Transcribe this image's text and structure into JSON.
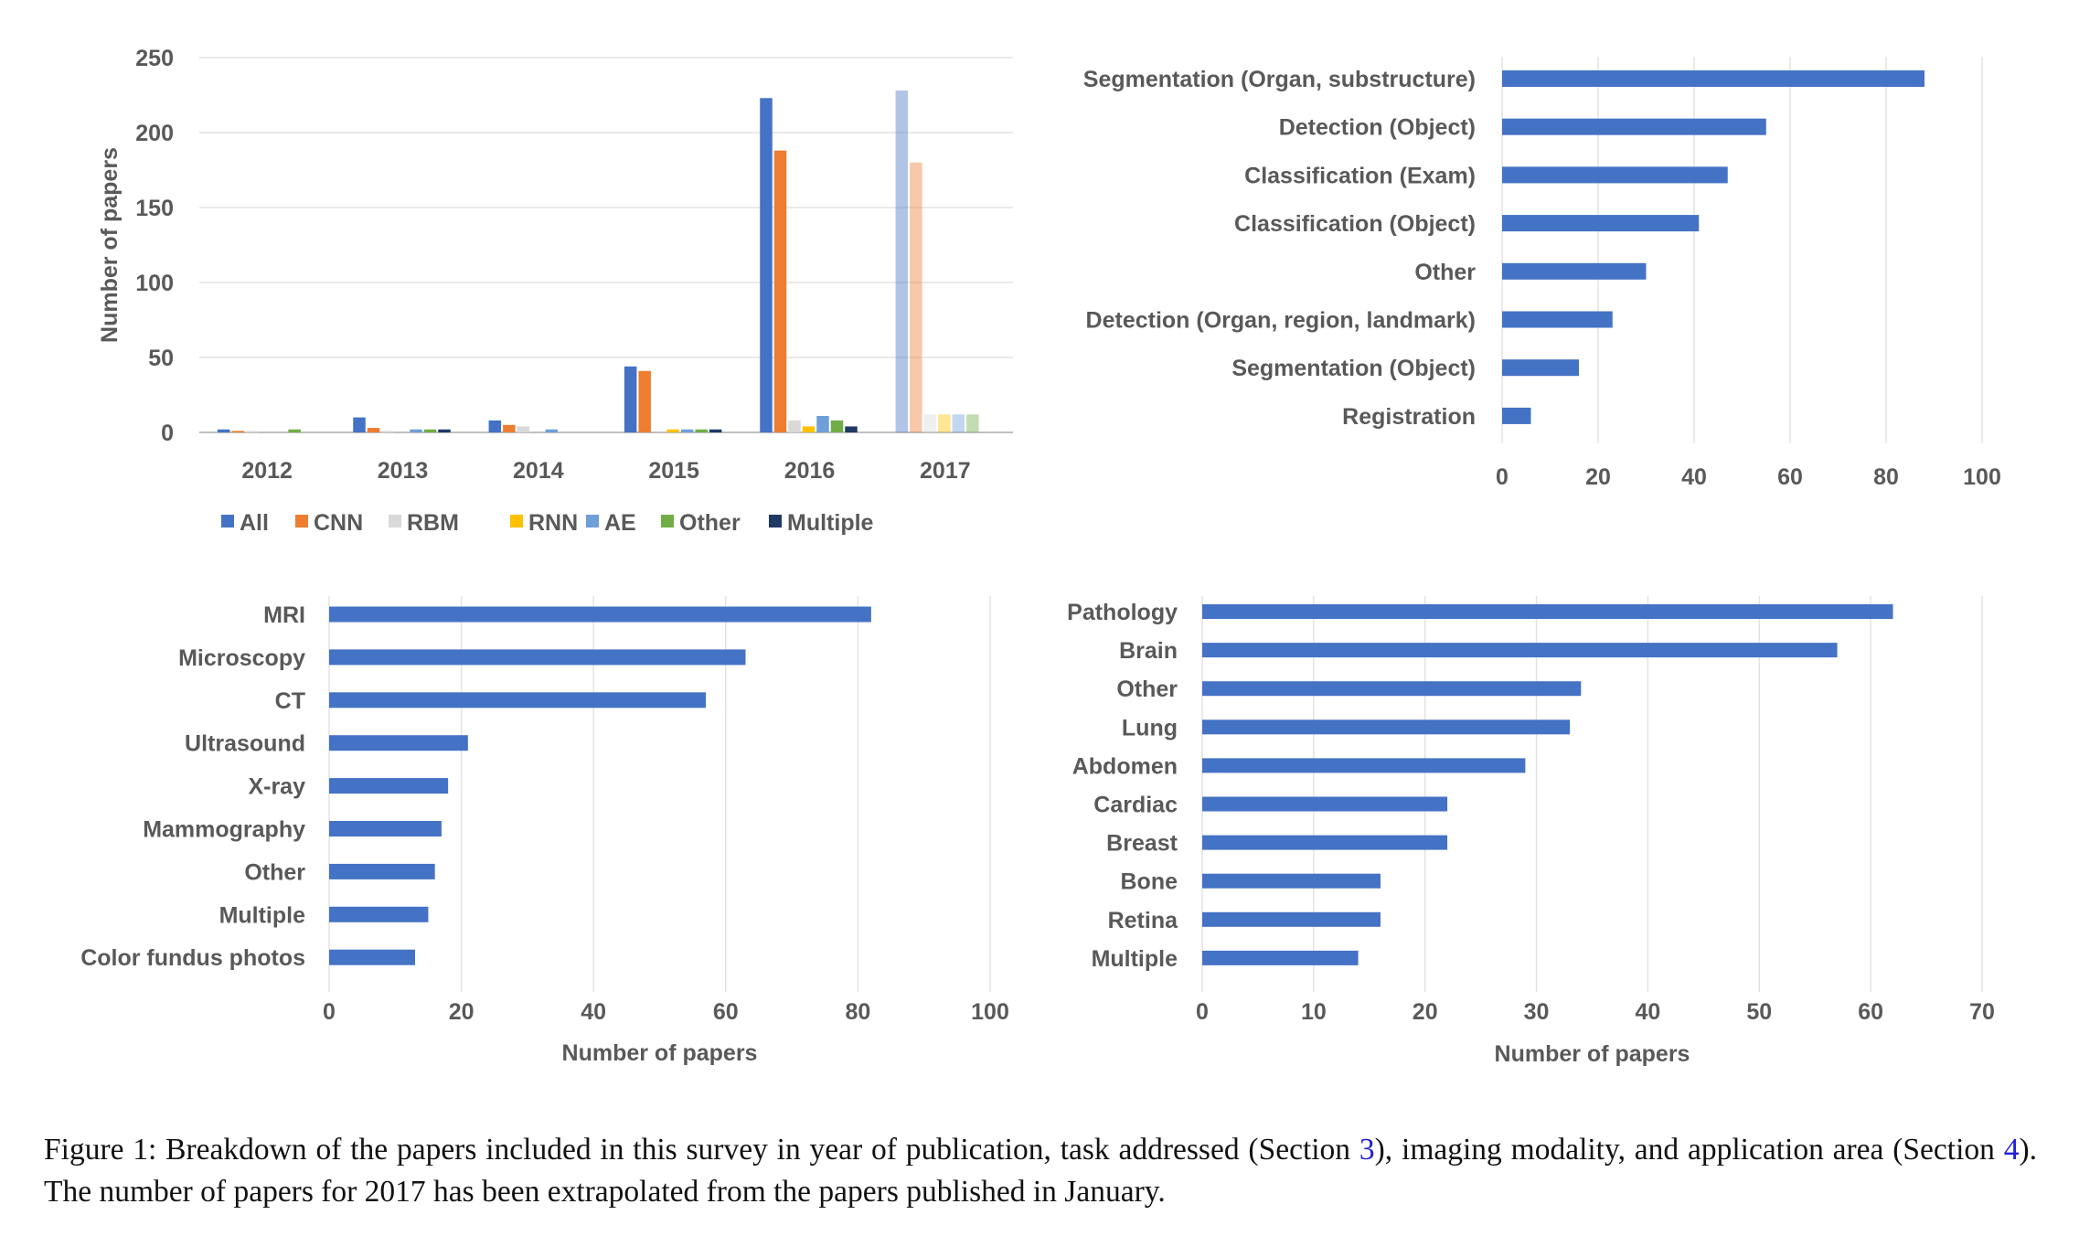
{
  "colors": {
    "All": "#4472c4",
    "CNN": "#ed7d31",
    "RBM": "#d9d9d9",
    "RNN": "#ffc000",
    "AE": "#6e9fd8",
    "Other": "#70ad47",
    "Multiple": "#203864",
    "grid": "#e3e3e3",
    "text": "#595959",
    "axis": "#bfbfbf",
    "faded_opacity": "0.42"
  },
  "chart_data": [
    {
      "type": "bar",
      "categories": [
        "2012",
        "2013",
        "2014",
        "2015",
        "2016",
        "2017"
      ],
      "series": [
        {
          "name": "All",
          "values": [
            2,
            10,
            8,
            44,
            223,
            228
          ]
        },
        {
          "name": "CNN",
          "values": [
            1,
            3,
            5,
            41,
            188,
            180
          ]
        },
        {
          "name": "RBM",
          "values": [
            1,
            1,
            4,
            0,
            8,
            12
          ]
        },
        {
          "name": "RNN",
          "values": [
            0,
            0,
            0,
            2,
            4,
            12
          ]
        },
        {
          "name": "AE",
          "values": [
            0,
            2,
            2,
            2,
            11,
            12
          ]
        },
        {
          "name": "Other",
          "values": [
            2,
            2,
            0,
            2,
            8,
            12
          ]
        },
        {
          "name": "Multiple",
          "values": [
            0,
            2,
            0,
            2,
            4,
            0
          ]
        }
      ],
      "title": "",
      "xlabel": "",
      "ylabel": "Number of papers",
      "ylim": [
        0,
        250
      ],
      "yticks": [
        "0",
        "50",
        "100",
        "150",
        "200",
        "250"
      ],
      "grid": true,
      "legend": "bottom",
      "extrapolated_category": "2017"
    },
    {
      "type": "bar",
      "orientation": "horizontal",
      "categories": [
        "Segmentation (Organ, substructure)",
        "Detection (Object)",
        "Classification (Exam)",
        "Classification (Object)",
        "Other",
        "Detection (Organ, region, landmark)",
        "Segmentation (Object)",
        "Registration"
      ],
      "values": [
        88,
        55,
        47,
        41,
        30,
        23,
        16,
        6
      ],
      "title": "",
      "xlabel": "",
      "xlim": [
        0,
        100
      ],
      "xticks": [
        "0",
        "20",
        "40",
        "60",
        "80",
        "100"
      ],
      "grid": true
    },
    {
      "type": "bar",
      "orientation": "horizontal",
      "categories": [
        "MRI",
        "Microscopy",
        "CT",
        "Ultrasound",
        "X-ray",
        "Mammography",
        "Other",
        "Multiple",
        "Color fundus photos"
      ],
      "values": [
        82,
        63,
        57,
        21,
        18,
        17,
        16,
        15,
        13
      ],
      "title": "",
      "xlabel": "Number of papers",
      "xlim": [
        0,
        100
      ],
      "xticks": [
        "0",
        "20",
        "40",
        "60",
        "80",
        "100"
      ],
      "grid": true
    },
    {
      "type": "bar",
      "orientation": "horizontal",
      "categories": [
        "Pathology",
        "Brain",
        "Other",
        "Lung",
        "Abdomen",
        "Cardiac",
        "Breast",
        "Bone",
        "Retina",
        "Multiple"
      ],
      "values": [
        62,
        57,
        34,
        33,
        29,
        22,
        22,
        16,
        16,
        14
      ],
      "title": "",
      "xlabel": "Number of papers",
      "xlim": [
        0,
        70
      ],
      "xticks": [
        "0",
        "10",
        "20",
        "30",
        "40",
        "50",
        "60",
        "70"
      ],
      "grid": true
    }
  ],
  "caption": {
    "part1": "Figure 1: Breakdown of the papers included in this survey in year of publication, task addressed (Section ",
    "ref1": "3",
    "part2": "), imaging modality, and application area (Section ",
    "ref2": "4",
    "part3": "). The number of papers for 2017 has been extrapolated from the papers published in January."
  }
}
